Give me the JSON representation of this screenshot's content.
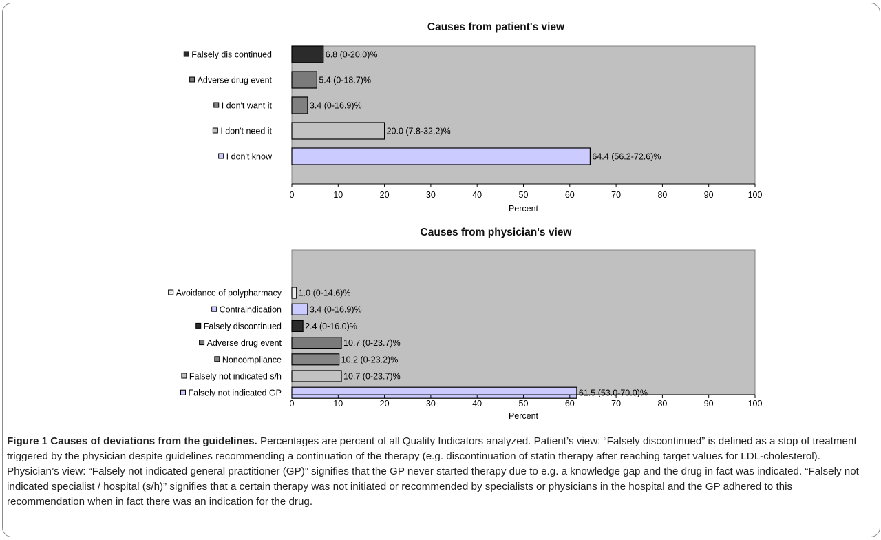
{
  "chart_data": [
    {
      "type": "bar",
      "orientation": "horizontal",
      "title": "Causes from patient's view",
      "xlabel": "Percent",
      "ylabel": "",
      "xlim": [
        0,
        100
      ],
      "xticks": [
        "0",
        "10",
        "20",
        "30",
        "40",
        "50",
        "60",
        "70",
        "80",
        "90",
        "100"
      ],
      "grid": false,
      "background": "#c0c0c0",
      "categories": [
        "Falsely discontinued",
        "Adverse drug event",
        "I don't want it",
        "I don't need it",
        "I don't know"
      ],
      "category_labels": [
        "Falsely dis continued",
        "Adverse drug event",
        "I don't want it",
        "I don't need it",
        "I don't know"
      ],
      "values": [
        6.8,
        5.4,
        3.4,
        20.0,
        64.4
      ],
      "ci": [
        [
          0,
          20.0
        ],
        [
          0,
          18.7
        ],
        [
          0,
          16.9
        ],
        [
          7.8,
          32.2
        ],
        [
          56.2,
          72.6
        ]
      ],
      "data_labels": [
        "6.8 (0-20.0)%",
        "5.4 (0-18.7)%",
        "3.4 (0-16.9)%",
        "20.0 (7.8-32.2)%",
        "64.4 (56.2-72.6)%"
      ],
      "colors": [
        "#2b2b2b",
        "#7a7a7a",
        "#808080",
        "#c2c2c2",
        "#cccbff"
      ]
    },
    {
      "type": "bar",
      "orientation": "horizontal",
      "title": "Causes from physician's view",
      "xlabel": "Percent",
      "ylabel": "",
      "xlim": [
        0,
        100
      ],
      "xticks": [
        "0",
        "10",
        "20",
        "30",
        "40",
        "50",
        "60",
        "70",
        "80",
        "90",
        "100"
      ],
      "grid": false,
      "background": "#c0c0c0",
      "categories": [
        "Avoidance of polypharmacy",
        "Contraindication",
        "Falsely discontinued",
        "Adverse drug event",
        "Noncompliance",
        "Falsely not indicated s/h",
        "Falsely not indicated GP"
      ],
      "category_labels": [
        "Avoidance of polypharmacy",
        "Contraindication",
        "Falsely discontinued",
        "Adverse drug event",
        "Noncompliance",
        "Falsely not indicated s/h",
        "Falsely not indicated GP"
      ],
      "values": [
        1.0,
        3.4,
        2.4,
        10.7,
        10.2,
        10.7,
        61.5
      ],
      "ci": [
        [
          0,
          14.6
        ],
        [
          0,
          16.9
        ],
        [
          0,
          16.0
        ],
        [
          0,
          23.7
        ],
        [
          0,
          23.2
        ],
        [
          0,
          23.7
        ],
        [
          53.0,
          70.0
        ]
      ],
      "data_labels": [
        "1.0 (0-14.6)%",
        "3.4 (0-16.9)%",
        "2.4 (0-16.0)%",
        "10.7 (0-23.7)%",
        "10.2 (0-23.2)%",
        "10.7 (0-23.7)%",
        "61.5 (53.0-70.0)%"
      ],
      "colors": [
        "#ececec",
        "#cccbff",
        "#2b2b2b",
        "#7a7a7a",
        "#858585",
        "#c2c2c2",
        "#cccbff"
      ]
    }
  ],
  "caption": {
    "title": "Figure 1 Causes of deviations from the guidelines.",
    "text": " Percentages are percent of all Quality Indicators analyzed. Patient’s view: “Falsely discontinued” is defined as a stop of treatment triggered by the physician despite guidelines recommending a continuation of the therapy (e.g. discontinuation of statin therapy after reaching target values for LDL-cholesterol). Physician’s view: “Falsely not indicated general practitioner (GP)” signifies that the GP never started therapy due to e.g. a knowledge gap and the drug in fact was indicated. “Falsely not indicated specialist / hospital (s/h)” signifies that a certain therapy was not initiated or recommended by specialists or physicians in the hospital and the GP adhered to this recommendation when in fact there was an indication for the drug."
  }
}
